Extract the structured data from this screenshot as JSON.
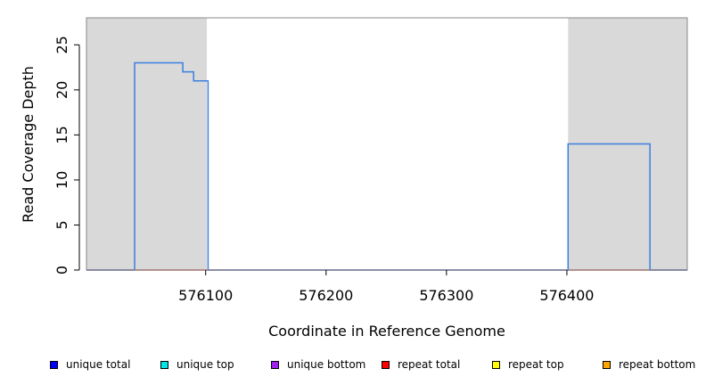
{
  "chart_data": {
    "type": "line",
    "xlabel": "Coordinate in Reference Genome",
    "ylabel": "Read Coverage Depth",
    "xlim": [
      576001,
      576500
    ],
    "ylim": [
      0,
      28
    ],
    "x_ticks": [
      576100,
      576200,
      576300,
      576400
    ],
    "x_tick_labels": [
      "576100",
      "576200",
      "576300",
      "576400"
    ],
    "y_ticks": [
      0,
      5,
      10,
      15,
      20,
      25
    ],
    "y_tick_labels": [
      "0",
      "5",
      "10",
      "15",
      "20",
      "25"
    ],
    "grid": false,
    "shaded_regions": [
      {
        "from": 576001,
        "to": 576101,
        "color": "#d9d9d9"
      },
      {
        "from": 576401,
        "to": 576500,
        "color": "#d9d9d9"
      }
    ],
    "series": [
      {
        "name": "unique total",
        "color": "#3b7fe0",
        "step": true,
        "points": [
          [
            576001,
            0
          ],
          [
            576041,
            0
          ],
          [
            576041,
            23
          ],
          [
            576081,
            23
          ],
          [
            576081,
            22
          ],
          [
            576090,
            22
          ],
          [
            576090,
            21
          ],
          [
            576102,
            21
          ],
          [
            576102,
            0
          ],
          [
            576401,
            0
          ],
          [
            576401,
            14
          ],
          [
            576469,
            14
          ],
          [
            576469,
            0
          ],
          [
            576500,
            0
          ]
        ]
      },
      {
        "name": "repeat total",
        "color": "#d9534f",
        "step": true,
        "points": [
          [
            576001,
            0
          ],
          [
            576500,
            0
          ]
        ]
      }
    ],
    "legend": {
      "placement": "bottom",
      "items": [
        {
          "label": "unique total",
          "color": "#0000ff"
        },
        {
          "label": "unique top",
          "color": "#00e5e5"
        },
        {
          "label": "unique bottom",
          "color": "#a020f0"
        },
        {
          "label": "repeat total",
          "color": "#ff0000"
        },
        {
          "label": "repeat top",
          "color": "#ffff00"
        },
        {
          "label": "repeat bottom",
          "color": "#ffa500"
        }
      ]
    }
  }
}
